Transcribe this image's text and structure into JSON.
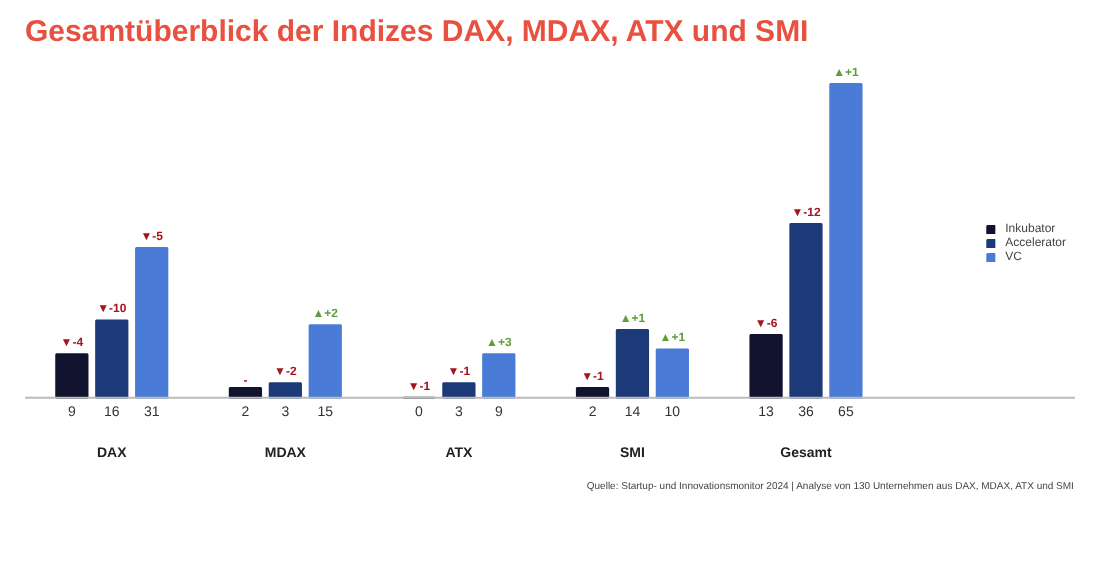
{
  "chart_data": {
    "type": "bar",
    "title": "Gesamtüberblick der Indizes DAX, MDAX, ATX und SMI",
    "categories": [
      "DAX",
      "MDAX",
      "ATX",
      "SMI",
      "Gesamt"
    ],
    "series": [
      {
        "name": "Inkubator",
        "color": "#11132f",
        "values": [
          9,
          2,
          0,
          2,
          13
        ]
      },
      {
        "name": "Accelerator",
        "color": "#1d3a78",
        "values": [
          16,
          3,
          3,
          14,
          36
        ]
      },
      {
        "name": "VC",
        "color": "#4a7bd6",
        "values": [
          31,
          15,
          9,
          10,
          65
        ]
      }
    ],
    "data_labels": true,
    "legend": "right",
    "annotations": [
      "▼-4",
      "▼-10",
      "▼-5",
      "-",
      "▼-2",
      "▲+2",
      "▼-1",
      "▼-1",
      "▲+3",
      "▼-1",
      "▲+1",
      "▲+1",
      "▼-6",
      "▼-12",
      "▲+1",
      "Quelle: Startup- und Innovationsmonitor 2024 | Analyse von 130 Unternehmen aus DAX, MDAX, ATX und SMI"
    ]
  }
}
